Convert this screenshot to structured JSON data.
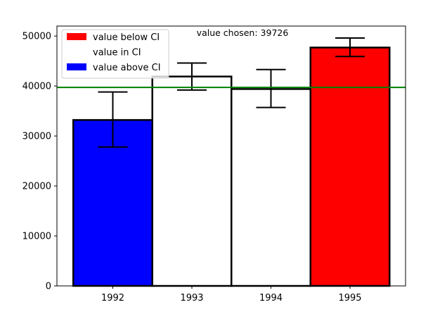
{
  "chart_data": {
    "type": "bar",
    "categories": [
      "1992",
      "1993",
      "1994",
      "1995"
    ],
    "values": [
      33200,
      41900,
      39400,
      47700
    ],
    "errors": [
      {
        "low": 27800,
        "high": 38800
      },
      {
        "low": 39200,
        "high": 44600
      },
      {
        "low": 35700,
        "high": 43300
      },
      {
        "low": 45900,
        "high": 49600
      }
    ],
    "bar_colors": [
      "#0000ff",
      "#ffffff",
      "#ffffff",
      "#ff0000"
    ],
    "reference_value": 39726,
    "reference_color": "#008000",
    "annotation": "value chosen: 39726",
    "ylim": [
      0,
      52000
    ],
    "yticks": [
      0,
      10000,
      20000,
      30000,
      40000,
      50000
    ],
    "ytick_labels": [
      "0",
      "10000",
      "20000",
      "30000",
      "40000",
      "50000"
    ],
    "legend": {
      "placement": "top-left",
      "items": [
        {
          "label": "value below CI",
          "color": "#ff0000"
        },
        {
          "label": "value in CI",
          "color": "#ffffff"
        },
        {
          "label": "value above CI",
          "color": "#0000ff"
        }
      ]
    },
    "grid": false
  }
}
